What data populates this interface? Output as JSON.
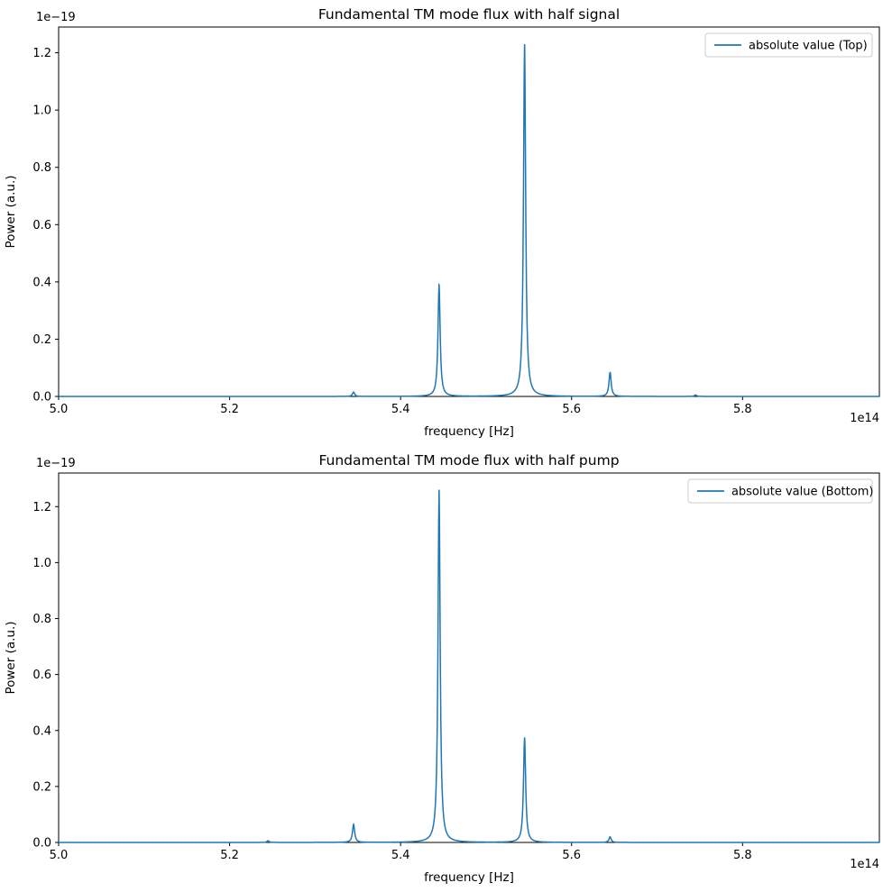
{
  "figure": {
    "background": "#ffffff",
    "line_color": "#1f77b4"
  },
  "chart_data": [
    {
      "type": "line",
      "title": "Fundamental TM mode flux with half signal",
      "xlabel": "frequency [Hz]",
      "ylabel": "Power (a.u.)",
      "x_offset_text": "1e14",
      "y_offset_text": "1e−19",
      "grid": false,
      "legend_position": "upper right",
      "legend_entries": [
        {
          "label": "absolute value (Top)",
          "color": "#1f77b4"
        }
      ],
      "xlim": [
        5.0,
        5.96
      ],
      "ylim": [
        0.0,
        1.29
      ],
      "x_ticks": [
        {
          "value": 5.0,
          "label": "5.0"
        },
        {
          "value": 5.2,
          "label": "5.2"
        },
        {
          "value": 5.4,
          "label": "5.4"
        },
        {
          "value": 5.6,
          "label": "5.6"
        },
        {
          "value": 5.8,
          "label": "5.8"
        }
      ],
      "y_ticks": [
        {
          "value": 0.0,
          "label": "0.0"
        },
        {
          "value": 0.2,
          "label": "0.2"
        },
        {
          "value": 0.4,
          "label": "0.4"
        },
        {
          "value": 0.6,
          "label": "0.6"
        },
        {
          "value": 0.8,
          "label": "0.8"
        },
        {
          "value": 1.0,
          "label": "1.0"
        },
        {
          "value": 1.2,
          "label": "1.2"
        }
      ],
      "series": [
        {
          "name": "absolute value (Top)",
          "color": "#1f77b4",
          "baseline": 0.0,
          "peaks": [
            {
              "x": 5.345,
              "height": 0.015,
              "fwhm": 0.003
            },
            {
              "x": 5.445,
              "height": 0.39,
              "fwhm": 0.003
            },
            {
              "x": 5.545,
              "height": 1.23,
              "fwhm": 0.003
            },
            {
              "x": 5.645,
              "height": 0.085,
              "fwhm": 0.003
            },
            {
              "x": 5.745,
              "height": 0.005,
              "fwhm": 0.003
            }
          ]
        }
      ]
    },
    {
      "type": "line",
      "title": "Fundamental TM mode flux with half pump",
      "xlabel": "frequency [Hz]",
      "ylabel": "Power (a.u.)",
      "x_offset_text": "1e14",
      "y_offset_text": "1e−19",
      "grid": false,
      "legend_position": "upper right",
      "legend_entries": [
        {
          "label": "absolute value (Bottom)",
          "color": "#1f77b4"
        }
      ],
      "xlim": [
        5.0,
        5.96
      ],
      "ylim": [
        0.0,
        1.32
      ],
      "x_ticks": [
        {
          "value": 5.0,
          "label": "5.0"
        },
        {
          "value": 5.2,
          "label": "5.2"
        },
        {
          "value": 5.4,
          "label": "5.4"
        },
        {
          "value": 5.6,
          "label": "5.6"
        },
        {
          "value": 5.8,
          "label": "5.8"
        }
      ],
      "y_ticks": [
        {
          "value": 0.0,
          "label": "0.0"
        },
        {
          "value": 0.2,
          "label": "0.2"
        },
        {
          "value": 0.4,
          "label": "0.4"
        },
        {
          "value": 0.6,
          "label": "0.6"
        },
        {
          "value": 0.8,
          "label": "0.8"
        },
        {
          "value": 1.0,
          "label": "1.0"
        },
        {
          "value": 1.2,
          "label": "1.2"
        }
      ],
      "series": [
        {
          "name": "absolute value (Bottom)",
          "color": "#1f77b4",
          "baseline": 0.0,
          "peaks": [
            {
              "x": 5.245,
              "height": 0.006,
              "fwhm": 0.003
            },
            {
              "x": 5.345,
              "height": 0.065,
              "fwhm": 0.003
            },
            {
              "x": 5.445,
              "height": 1.26,
              "fwhm": 0.003
            },
            {
              "x": 5.545,
              "height": 0.375,
              "fwhm": 0.003
            },
            {
              "x": 5.645,
              "height": 0.02,
              "fwhm": 0.003
            }
          ]
        }
      ]
    }
  ]
}
